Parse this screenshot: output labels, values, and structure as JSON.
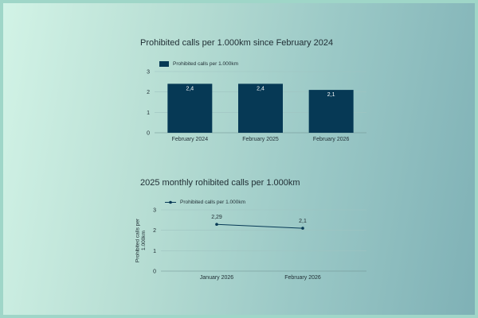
{
  "chart_data": [
    {
      "type": "bar",
      "title": "Prohibited calls per 1.000km since February 2024",
      "categories": [
        "February 2024",
        "February 2025",
        "February 2026"
      ],
      "series": [
        {
          "name": "Prohibited calls per 1.000km",
          "values": [
            2.4,
            2.4,
            2.1
          ],
          "labels": [
            "2,4",
            "2,4",
            "2,1"
          ]
        }
      ],
      "ylim": [
        0,
        3
      ],
      "yticks": [
        "0",
        "1",
        "2",
        "3"
      ],
      "xlabel": "",
      "ylabel": "",
      "grid": true,
      "legend": "top-left",
      "color": "#063955"
    },
    {
      "type": "line",
      "title": "2025 monthly rohibited calls per 1.000km",
      "categories": [
        "January 2026",
        "February 2026"
      ],
      "series": [
        {
          "name": "Prohibited calls per 1.000km",
          "values": [
            2.29,
            2.1
          ],
          "labels": [
            "2,29",
            "2,1"
          ]
        }
      ],
      "ylim": [
        0,
        3
      ],
      "yticks": [
        "0",
        "1",
        "2",
        "3"
      ],
      "xlabel": "",
      "ylabel": "Prohibited calls per 1.000km",
      "grid": true,
      "legend": "top-left",
      "color": "#063955"
    }
  ]
}
